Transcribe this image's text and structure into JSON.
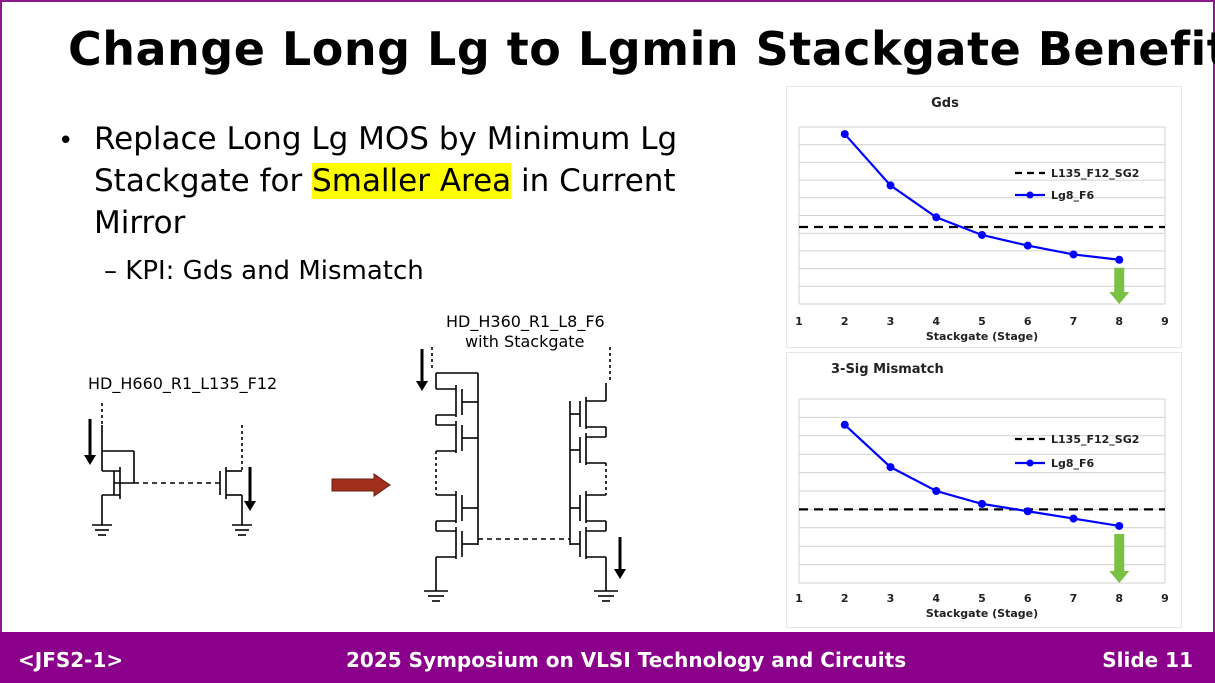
{
  "slide": {
    "title": "Change Long Lg to Lgmin Stackgate Benefits",
    "bullet_before": "Replace Long Lg MOS by Minimum Lg Stackgate for ",
    "bullet_highlight": "Smaller Area",
    "bullet_after": " in Current Mirror",
    "sub_bullet": "– KPI: Gds and Mismatch",
    "highlight_color": "#ffff00",
    "accent_color": "#8b008b",
    "arrow_color": "#a0301c"
  },
  "schematics": {
    "left_label": "HD_H660_R1_L135_F12",
    "right_label_line1": "HD_H360_R1_L8_F6",
    "right_label_line2": "with Stackgate"
  },
  "chart_data": [
    {
      "type": "line",
      "title": "Gds",
      "xlabel": "Stackgate (Stage)",
      "ylabel": "",
      "xlim": [
        1,
        9
      ],
      "xticks": [
        1,
        2,
        3,
        4,
        5,
        6,
        7,
        8,
        9
      ],
      "ylim": [
        0,
        10
      ],
      "grid": true,
      "legend": "right",
      "series": [
        {
          "name": "L135_F12_SG2",
          "style": "dashed",
          "color": "#000000",
          "x": [
            1,
            9
          ],
          "values": [
            4.35,
            4.35
          ]
        },
        {
          "name": "Lg8_F6",
          "style": "solid-marker",
          "color": "#0000ff",
          "x": [
            2,
            3,
            4,
            5,
            6,
            7,
            8
          ],
          "values": [
            9.6,
            6.7,
            4.9,
            3.9,
            3.3,
            2.8,
            2.5
          ]
        }
      ],
      "annotation": "green-down-arrow at x=8"
    },
    {
      "type": "line",
      "title": "3-Sig Mismatch",
      "xlabel": "Stackgate (Stage)",
      "ylabel": "",
      "xlim": [
        1,
        9
      ],
      "xticks": [
        1,
        2,
        3,
        4,
        5,
        6,
        7,
        8,
        9
      ],
      "ylim": [
        0,
        10
      ],
      "grid": true,
      "legend": "right",
      "series": [
        {
          "name": "L135_F12_SG2",
          "style": "dashed",
          "color": "#000000",
          "x": [
            1,
            9
          ],
          "values": [
            4.0,
            4.0
          ]
        },
        {
          "name": "Lg8_F6",
          "style": "solid-marker",
          "color": "#0000ff",
          "x": [
            2,
            3,
            4,
            5,
            6,
            7,
            8
          ],
          "values": [
            8.6,
            6.3,
            5.0,
            4.3,
            3.9,
            3.5,
            3.1
          ]
        }
      ],
      "annotation": "green-down-arrow at x=8"
    }
  ],
  "footer": {
    "left": "<JFS2-1>",
    "center": "2025 Symposium on VLSI Technology and Circuits",
    "right": "Slide 11"
  }
}
